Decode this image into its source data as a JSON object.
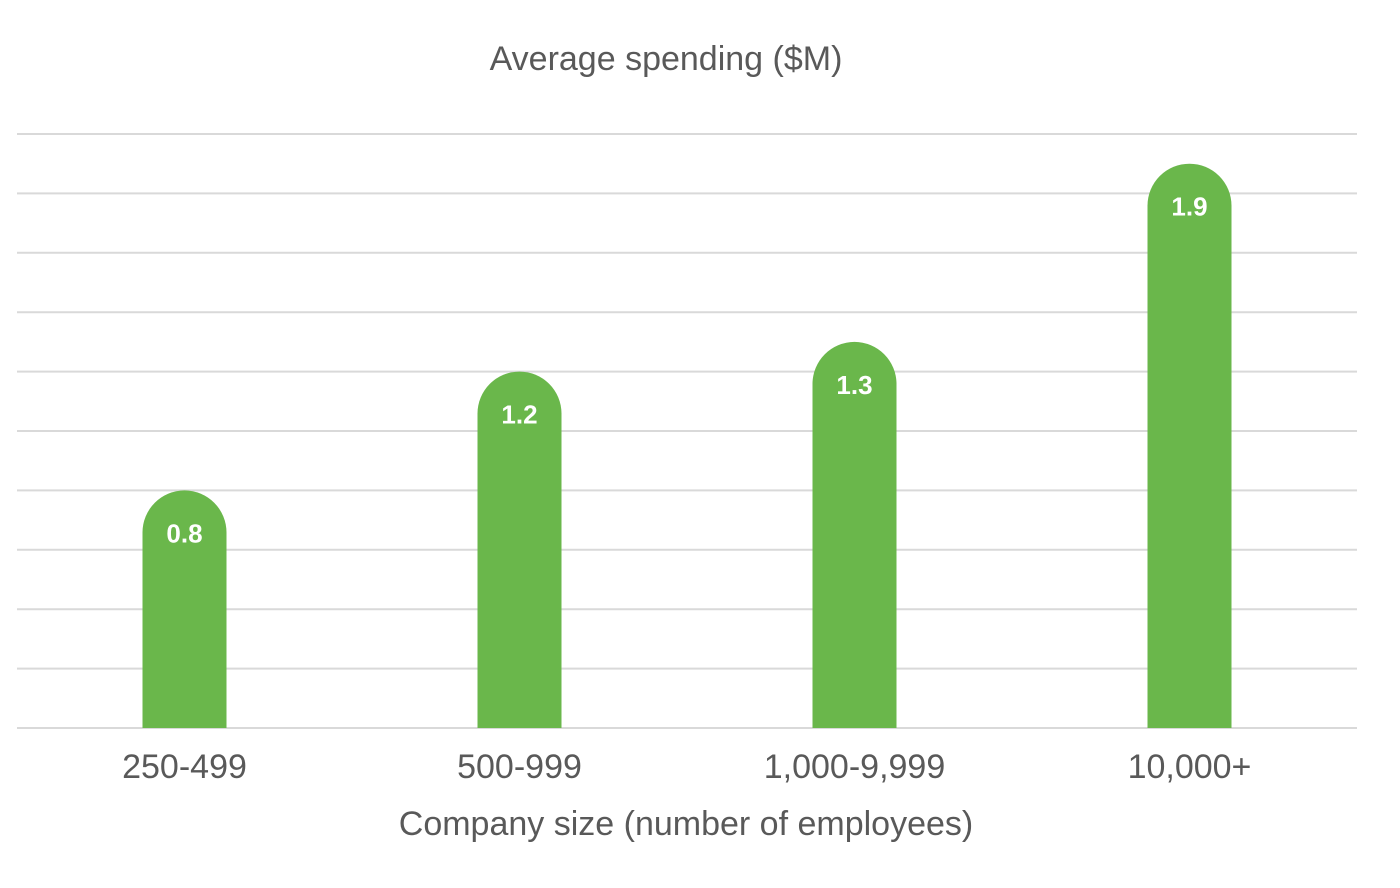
{
  "chart_data": {
    "type": "bar",
    "title": "Average spending ($M)",
    "xlabel": "Company size (number of employees)",
    "ylabel": "",
    "categories": [
      "250-499",
      "500-999",
      "1,000-9,999",
      "10,000+"
    ],
    "values": [
      0.8,
      1.2,
      1.3,
      1.9
    ],
    "data_labels": [
      "0.8",
      "1.2",
      "1.3",
      "1.9"
    ],
    "ylim": [
      0,
      2
    ],
    "grid": true,
    "legend": "none",
    "colors": {
      "bar": "#6ab74b",
      "grid": "#d9d9d9",
      "text": "#595959",
      "data_label": "#ffffff"
    }
  }
}
